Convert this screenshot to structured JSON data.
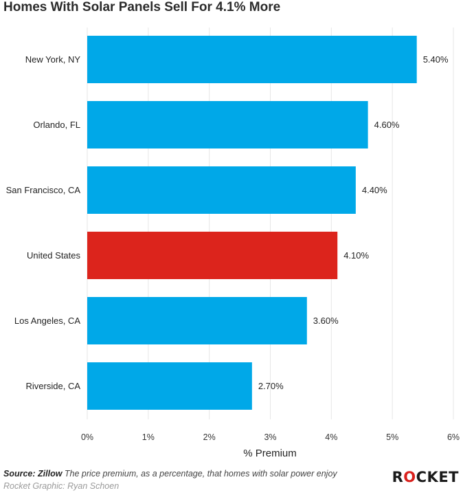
{
  "chart_data": {
    "type": "bar",
    "orientation": "horizontal",
    "title": "Homes With Solar Panels Sell For 4.1% More",
    "xlabel": "% Premium",
    "ylabel": "",
    "xlim": [
      0,
      6
    ],
    "x_ticks": [
      "0%",
      "1%",
      "2%",
      "3%",
      "4%",
      "5%",
      "6%"
    ],
    "grid": "vertical",
    "categories": [
      "New York, NY",
      "Orlando, FL",
      "San Francisco, CA",
      "United States",
      "Los Angeles, CA",
      "Riverside, CA"
    ],
    "values": [
      5.4,
      4.6,
      4.4,
      4.1,
      3.6,
      2.7
    ],
    "value_labels": [
      "5.40%",
      "4.60%",
      "4.40%",
      "4.10%",
      "3.60%",
      "2.70%"
    ],
    "colors": {
      "default": "#00a8e8",
      "highlight": "#dc241c",
      "highlight_category": "United States",
      "grid": "#e6e6e6"
    }
  },
  "footer": {
    "source_label": "Source: Zillow",
    "description": "The price premium, as a percentage, that homes with solar power enjoy",
    "credit": "Rocket Graphic: Ryan Schoen"
  },
  "logo": {
    "part1": "R",
    "part2": "O",
    "part3": "CKET"
  }
}
